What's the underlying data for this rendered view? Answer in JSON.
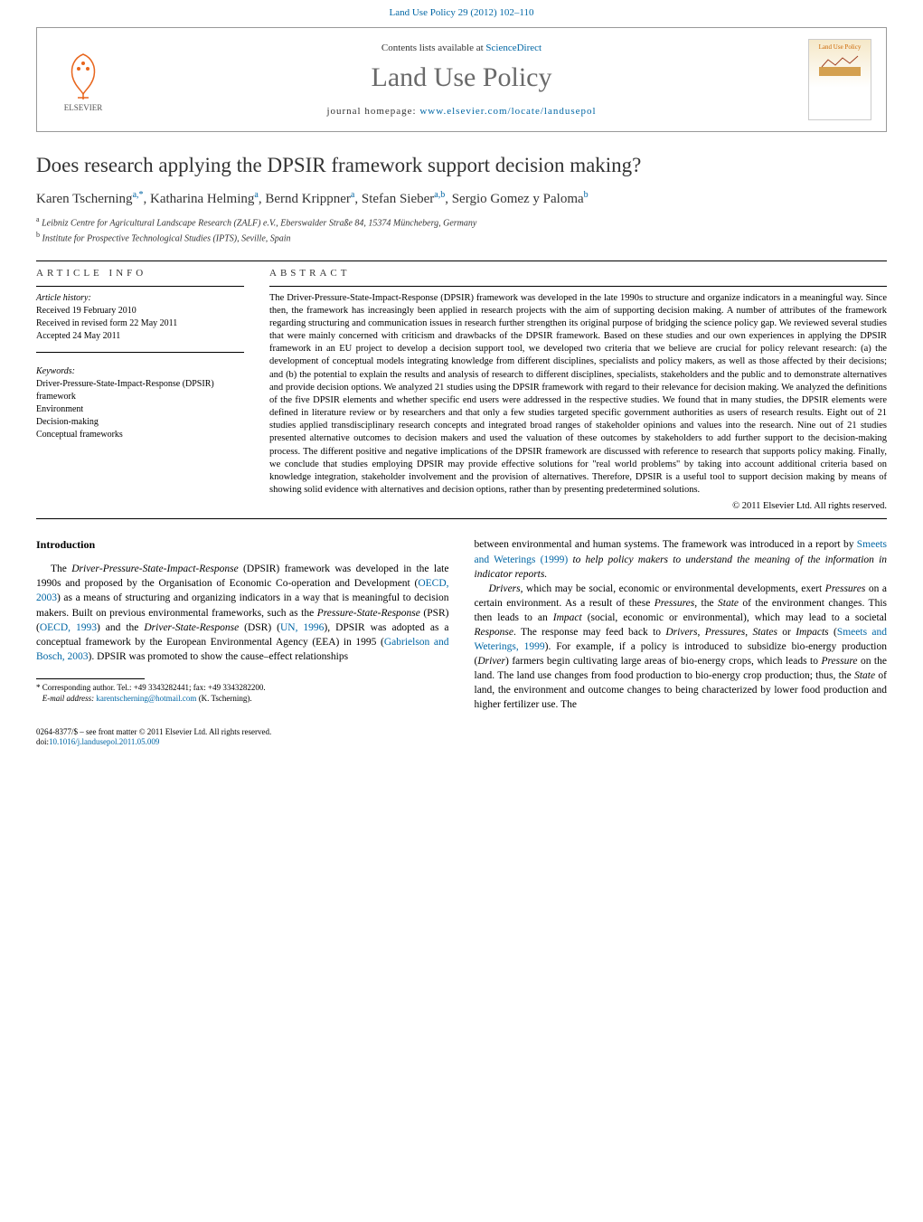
{
  "colors": {
    "link": "#0066a4",
    "text": "#000000",
    "muted": "#6a6a6a",
    "elsevier_orange": "#e8651c",
    "rule": "#000000"
  },
  "typography": {
    "body_family": "Georgia, 'Times New Roman', serif",
    "title_fontsize": 23,
    "journal_title_fontsize": 30,
    "body_fontsize": 11.5,
    "abstract_fontsize": 10.5,
    "info_fontsize": 10,
    "footnote_fontsize": 9
  },
  "header": {
    "citation_line": "Land Use Policy 29 (2012) 102–110",
    "contents_prefix": "Contents lists available at ",
    "contents_link": "ScienceDirect",
    "journal_title": "Land Use Policy",
    "homepage_prefix": "journal homepage: ",
    "homepage_link": "www.elsevier.com/locate/landusepol",
    "elsevier_label": "ELSEVIER",
    "cover_label": "Land Use Policy"
  },
  "article": {
    "title": "Does research applying the DPSIR framework support decision making?",
    "authors_html": "Karen Tscherning<sup>a,*</sup>, Katharina Helming<sup>a</sup>, Bernd Krippner<sup>a</sup>, Stefan Sieber<sup>a,b</sup>, Sergio Gomez y Paloma<sup>b</sup>",
    "affiliations": {
      "a": "Leibniz Centre for Agricultural Landscape Research (ZALF) e.V., Eberswalder Straße 84, 15374 Müncheberg, Germany",
      "b": "Institute for Prospective Technological Studies (IPTS), Seville, Spain"
    }
  },
  "info": {
    "heading": "article info",
    "history_label": "Article history:",
    "received": "Received 19 February 2010",
    "revised": "Received in revised form 22 May 2011",
    "accepted": "Accepted 24 May 2011",
    "keywords_label": "Keywords:",
    "keywords": [
      "Driver-Pressure-State-Impact-Response (DPSIR) framework",
      "Environment",
      "Decision-making",
      "Conceptual frameworks"
    ]
  },
  "abstract": {
    "heading": "abstract",
    "text": "The Driver-Pressure-State-Impact-Response (DPSIR) framework was developed in the late 1990s to structure and organize indicators in a meaningful way. Since then, the framework has increasingly been applied in research projects with the aim of supporting decision making. A number of attributes of the framework regarding structuring and communication issues in research further strengthen its original purpose of bridging the science policy gap. We reviewed several studies that were mainly concerned with criticism and drawbacks of the DPSIR framework. Based on these studies and our own experiences in applying the DPSIR framework in an EU project to develop a decision support tool, we developed two criteria that we believe are crucial for policy relevant research: (a) the development of conceptual models integrating knowledge from different disciplines, specialists and policy makers, as well as those affected by their decisions; and (b) the potential to explain the results and analysis of research to different disciplines, specialists, stakeholders and the public and to demonstrate alternatives and provide decision options. We analyzed 21 studies using the DPSIR framework with regard to their relevance for decision making. We analyzed the definitions of the five DPSIR elements and whether specific end users were addressed in the respective studies. We found that in many studies, the DPSIR elements were defined in literature review or by researchers and that only a few studies targeted specific government authorities as users of research results. Eight out of 21 studies applied transdisciplinary research concepts and integrated broad ranges of stakeholder opinions and values into the research. Nine out of 21 studies presented alternative outcomes to decision makers and used the valuation of these outcomes by stakeholders to add further support to the decision-making process. The different positive and negative implications of the DPSIR framework are discussed with reference to research that supports policy making. Finally, we conclude that studies employing DPSIR may provide effective solutions for \"real world problems\" by taking into account additional criteria based on knowledge integration, stakeholder involvement and the provision of alternatives. Therefore, DPSIR is a useful tool to support decision making by means of showing solid evidence with alternatives and decision options, rather than by presenting predetermined solutions.",
    "copyright": "© 2011 Elsevier Ltd. All rights reserved."
  },
  "body": {
    "intro_heading": "Introduction",
    "col1_p1": "The Driver-Pressure-State-Impact-Response (DPSIR) framework was developed in the late 1990s and proposed by the Organisation of Economic Co-operation and Development (OECD, 2003) as a means of structuring and organizing indicators in a way that is meaningful to decision makers. Built on previous environmental frameworks, such as the Pressure-State-Response (PSR) (OECD, 1993) and the Driver-State-Response (DSR) (UN, 1996), DPSIR was adopted as a conceptual framework by the European Environmental Agency (EEA) in 1995 (Gabrielson and Bosch, 2003). DPSIR was promoted to show the cause–effect relationships",
    "col2_p1": "between environmental and human systems. The framework was introduced in a report by Smeets and Weterings (1999) to help policy makers to understand the meaning of the information in indicator reports.",
    "col2_p2": "Drivers, which may be social, economic or environmental developments, exert Pressures on a certain environment. As a result of these Pressures, the State of the environment changes. This then leads to an Impact (social, economic or environmental), which may lead to a societal Response. The response may feed back to Drivers, Pressures, States or Impacts (Smeets and Weterings, 1999). For example, if a policy is introduced to subsidize bio-energy production (Driver) farmers begin cultivating large areas of bio-energy crops, which leads to Pressure on the land. The land use changes from food production to bio-energy crop production; thus, the State of land, the environment and outcome changes to being characterized by lower food production and higher fertilizer use. The"
  },
  "footnote": {
    "corr": "* Corresponding author. Tel.: +49 3343282441; fax: +49 3343282200.",
    "email_label": "E-mail address: ",
    "email": "karentscherning@hotmail.com",
    "email_suffix": " (K. Tscherning)."
  },
  "footer": {
    "issn": "0264-8377/$ – see front matter © 2011 Elsevier Ltd. All rights reserved.",
    "doi_label": "doi:",
    "doi": "10.1016/j.landusepol.2011.05.009"
  }
}
